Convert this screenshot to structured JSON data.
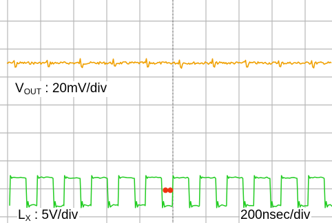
{
  "chart_data": {
    "type": "line",
    "title": "",
    "grid": true,
    "grid_divisions": {
      "horizontal": 10,
      "vertical": 8
    },
    "center_marker": "dashed-vertical",
    "timebase": "200nsec/div",
    "series": [
      {
        "name_main": "V",
        "name_sub": "OUT",
        "scale": " : 20mV/div",
        "color": "#f0a000",
        "waveform": "ripple",
        "baseline_div": 1.5,
        "spike_period_div": 1.0,
        "noise_pp_div": 0.15
      },
      {
        "name_main": "L",
        "name_sub": "X",
        "scale": " : 5V/div",
        "color": "#22cc22",
        "waveform": "switching",
        "high_div": -2.6,
        "low_div": -3.6,
        "period_div": 0.82
      }
    ],
    "trigger_marker": {
      "color": "#ee3311",
      "position_div": -0.15
    }
  },
  "colors": {
    "grid": "#b7b7b7",
    "center_line": "#666666",
    "background": "#ffffff"
  }
}
